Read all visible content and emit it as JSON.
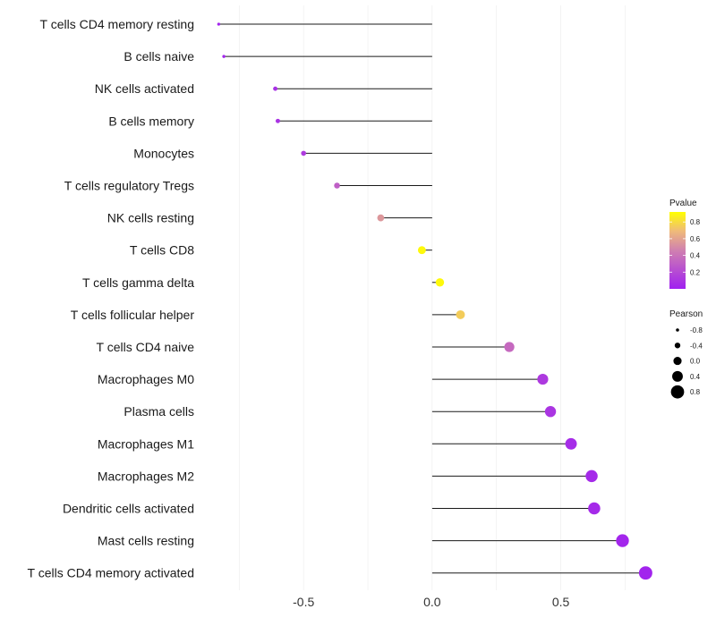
{
  "chart_data": {
    "type": "lollipop",
    "title": "",
    "xlabel": "",
    "ylabel": "",
    "xlim": [
      -0.88,
      0.86
    ],
    "x_ticks": [
      -0.5,
      0.0,
      0.5
    ],
    "x_tick_labels": [
      "-0.5",
      "0.0",
      "0.5"
    ],
    "grid": true,
    "categories": [
      "T cells CD4 memory resting",
      "B cells naive",
      "NK cells activated",
      "B cells memory",
      "Monocytes",
      "T cells regulatory  Tregs",
      "NK cells resting",
      "T cells CD8",
      "T cells gamma delta",
      "T cells follicular helper",
      "T cells CD4 naive",
      "Macrophages M0",
      "Plasma cells",
      "Macrophages M1",
      "Macrophages M2",
      "Dendritic cells activated",
      "Mast cells resting",
      "T cells CD4 memory activated"
    ],
    "series": [
      {
        "name": "Pearson",
        "values": [
          -0.83,
          -0.81,
          -0.61,
          -0.6,
          -0.5,
          -0.37,
          -0.2,
          -0.04,
          0.03,
          0.11,
          0.3,
          0.43,
          0.46,
          0.54,
          0.62,
          0.63,
          0.74,
          0.83
        ]
      },
      {
        "name": "Pvalue",
        "values": [
          0.02,
          0.03,
          0.08,
          0.09,
          0.13,
          0.3,
          0.55,
          0.9,
          0.9,
          0.75,
          0.35,
          0.12,
          0.1,
          0.06,
          0.05,
          0.05,
          0.03,
          0.02
        ]
      }
    ],
    "legend": {
      "position": "right",
      "color_title": "Pvalue",
      "color_ticks": [
        0.2,
        0.4,
        0.6,
        0.8
      ],
      "color_tick_labels": [
        "0.2",
        "0.4",
        "0.6",
        "0.8"
      ],
      "color_range": [
        0.0,
        0.92
      ],
      "color_low": "#A020F0",
      "color_high": "#FFFF00",
      "size_title": "Pearson",
      "size_breaks": [
        -0.8,
        -0.4,
        0.0,
        0.4,
        0.8
      ],
      "size_labels": [
        "-0.8",
        "-0.4",
        "0.0",
        "0.4",
        "0.8"
      ]
    }
  }
}
